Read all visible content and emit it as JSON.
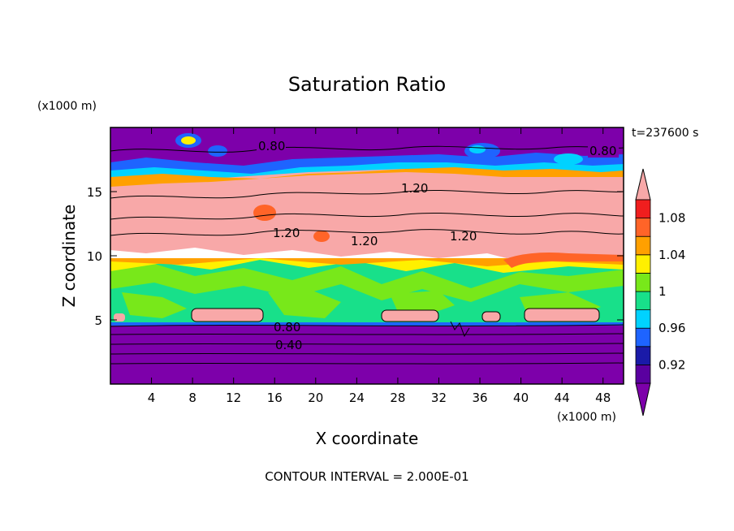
{
  "chart_data": {
    "type": "heatmap",
    "title": "Saturation Ratio",
    "xlabel": "X coordinate",
    "ylabel": "Z coordinate",
    "x_unit": "(x1000 m)",
    "y_unit": "(x1000 m)",
    "time_label": "t=237600 s",
    "footer": "CONTOUR INTERVAL = 2.000E-01",
    "xlim": [
      0,
      50
    ],
    "ylim": [
      0,
      20
    ],
    "x_ticks": [
      4,
      8,
      12,
      16,
      20,
      24,
      28,
      32,
      36,
      40,
      44,
      48
    ],
    "y_ticks": [
      5,
      10,
      15
    ],
    "colorbar": {
      "bins": [
        {
          "lower": 0.9,
          "upper": 0.92,
          "color": "#5a00a0"
        },
        {
          "lower": 0.92,
          "upper": 0.94,
          "color": "#1a1aa8"
        },
        {
          "lower": 0.94,
          "upper": 0.96,
          "color": "#1e64ff"
        },
        {
          "lower": 0.96,
          "upper": 0.98,
          "color": "#00d2ff"
        },
        {
          "lower": 0.98,
          "upper": 1.0,
          "color": "#18e08a"
        },
        {
          "lower": 1.0,
          "upper": 1.02,
          "color": "#78e81a"
        },
        {
          "lower": 1.02,
          "upper": 1.04,
          "color": "#fff000"
        },
        {
          "lower": 1.04,
          "upper": 1.06,
          "color": "#ffa000"
        },
        {
          "lower": 1.06,
          "upper": 1.08,
          "color": "#ff6428"
        },
        {
          "lower": 1.08,
          "upper": 1.1,
          "color": "#f01e1e"
        }
      ],
      "below_color": "#7d00aa",
      "above_color": "#f8a8a8",
      "tick_labels": [
        "0.92",
        "0.96",
        "1",
        "1.04",
        "1.08"
      ]
    },
    "contour_labels": [
      "0.80",
      "0.80",
      "1.20",
      "1.20",
      "1.20",
      "1.20",
      "0.80",
      "0.40"
    ],
    "regions": [
      {
        "level": "below",
        "z_range": [
          0,
          4.7
        ],
        "description_value": 0.4
      },
      {
        "level": "around_1",
        "z_range": [
          4.7,
          9.5
        ]
      },
      {
        "level": "above",
        "z_range": [
          9.5,
          16.5
        ],
        "description_value": 1.2
      },
      {
        "level": "below",
        "z_range": [
          16.5,
          20
        ],
        "description_value": 0.8
      }
    ]
  }
}
